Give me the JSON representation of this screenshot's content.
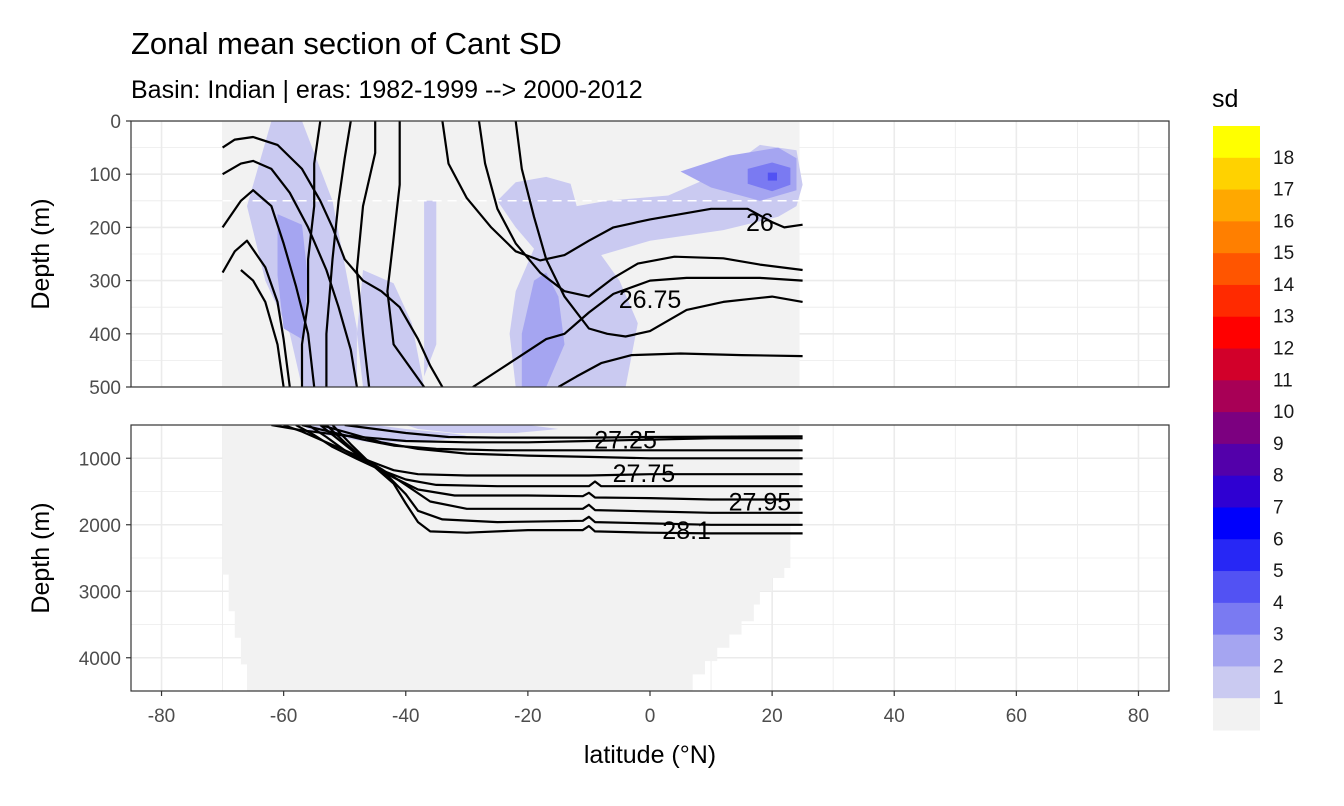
{
  "chart_data": {
    "type": "contour-section",
    "title": "Zonal mean section of Cant SD",
    "subtitle": "Basin: Indian | eras: 1982-1999 --> 2000-2012",
    "xlabel": "latitude (°N)",
    "ylabel": "Depth (m)",
    "xlim": [
      -85,
      85
    ],
    "x_ticks": [
      "-80",
      "-60",
      "-40",
      "-20",
      "0",
      "20",
      "40",
      "60",
      "80"
    ],
    "panels": [
      {
        "name": "upper",
        "ylim": [
          0,
          500
        ],
        "y_ticks": [
          "0",
          "100",
          "200",
          "300",
          "400",
          "500"
        ],
        "reference_depth": 150,
        "isopycnal_labels": [
          {
            "text": "26",
            "lat": 18,
            "depth": 190
          },
          {
            "text": "26.75",
            "lat": 0,
            "depth": 335
          }
        ]
      },
      {
        "name": "lower",
        "ylim": [
          500,
          4500
        ],
        "y_ticks": [
          "1000",
          "2000",
          "3000",
          "4000"
        ],
        "isopycnal_labels": [
          {
            "text": "27.25",
            "lat": -4,
            "depth": 720
          },
          {
            "text": "27.75",
            "lat": -1,
            "depth": 1220
          },
          {
            "text": "27.95",
            "lat": 18,
            "depth": 1650
          },
          {
            "text": "28.1",
            "lat": 6,
            "depth": 2080
          }
        ]
      }
    ],
    "grid": true,
    "legend": {
      "title": "sd",
      "position": "right",
      "labels": [
        "1",
        "2",
        "3",
        "4",
        "5",
        "6",
        "7",
        "8",
        "9",
        "10",
        "11",
        "12",
        "13",
        "14",
        "15",
        "16",
        "17",
        "18"
      ],
      "colors": [
        "#f2f2f2",
        "#cacaf1",
        "#a5a5f1",
        "#7a7af2",
        "#5252f3",
        "#2727f5",
        "#0000fc",
        "#2f00d2",
        "#5300aa",
        "#7c0080",
        "#a80056",
        "#d2002a",
        "#ff0000",
        "#ff2a00",
        "#ff5500",
        "#ff7f00",
        "#ffa800",
        "#ffd200",
        "#ffff00"
      ]
    }
  }
}
